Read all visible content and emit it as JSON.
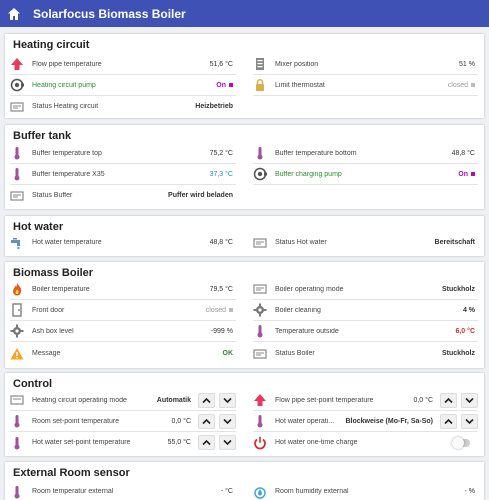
{
  "app": {
    "title": "Solarfocus Biomass Boiler"
  },
  "heating": {
    "title": "Heating circuit",
    "flow_temp": {
      "label": "Flow pipe temperature",
      "value": "51,6 °C"
    },
    "mixer": {
      "label": "Mixer position",
      "value": "51 %"
    },
    "pump": {
      "label": "Heating circuit pump",
      "value": "On"
    },
    "limit": {
      "label": "Limit thermostat",
      "value": "closed"
    },
    "status": {
      "label": "Status Heating circuit",
      "value": "Heizbetrieb"
    }
  },
  "buffer": {
    "title": "Buffer tank",
    "top": {
      "label": "Buffer temperature top",
      "value": "75,2 °C"
    },
    "bottom": {
      "label": "Buffer temperature bottom",
      "value": "48,8 °C"
    },
    "x35": {
      "label": "Buffer temperature X35",
      "value": "37,3 °C"
    },
    "pump": {
      "label": "Buffer charging pump",
      "value": "On"
    },
    "status": {
      "label": "Status Buffer",
      "value": "Puffer wird beladen"
    }
  },
  "hotwater": {
    "title": "Hot water",
    "temp": {
      "label": "Hot water temperature",
      "value": "48,8 °C"
    },
    "status": {
      "label": "Status Hot water",
      "value": "Bereitschaft"
    }
  },
  "boiler": {
    "title": "Biomass Boiler",
    "temp": {
      "label": "Boiler temperature",
      "value": "79,5 °C"
    },
    "mode": {
      "label": "Boiler operating mode",
      "value": "Stuckholz"
    },
    "door": {
      "label": "Front door",
      "value": "closed"
    },
    "cleaning": {
      "label": "Boiler cleaning",
      "value": "4 %"
    },
    "ash": {
      "label": "Ash box level",
      "value": "-999 %"
    },
    "outside": {
      "label": "Temperature outside",
      "value": "6,0 °C"
    },
    "message": {
      "label": "Message",
      "value": "OK"
    },
    "status": {
      "label": "Status Boiler",
      "value": "Stuckholz"
    }
  },
  "control": {
    "title": "Control",
    "hc_mode": {
      "label": "Heating circuit operating mode",
      "value": "Automatik"
    },
    "flow_setpoint": {
      "label": "Flow pipe set-point temperature",
      "value": "0,0 °C"
    },
    "room_setpoint": {
      "label": "Room set-point temperature",
      "value": "0,0 °C"
    },
    "hw_mode": {
      "label": "Hot water operati...",
      "value": "Blockweise (Mo-Fr, Sa-So)"
    },
    "hw_setpoint": {
      "label": "Hot water set-point temperature",
      "value": "55,0 °C"
    },
    "hw_charge": {
      "label": "Hot water one-time charge"
    }
  },
  "room": {
    "title": "External Room sensor",
    "temp": {
      "label": "Room temperatur external",
      "value": "- °C"
    },
    "humidity": {
      "label": "Room humidity external",
      "value": "- %"
    }
  },
  "colors": {
    "header": "#3f51b5",
    "on": "#2e8b2e",
    "accent": "#b00cb0",
    "warning": "#d32f2f",
    "link": "#2a86c9"
  }
}
